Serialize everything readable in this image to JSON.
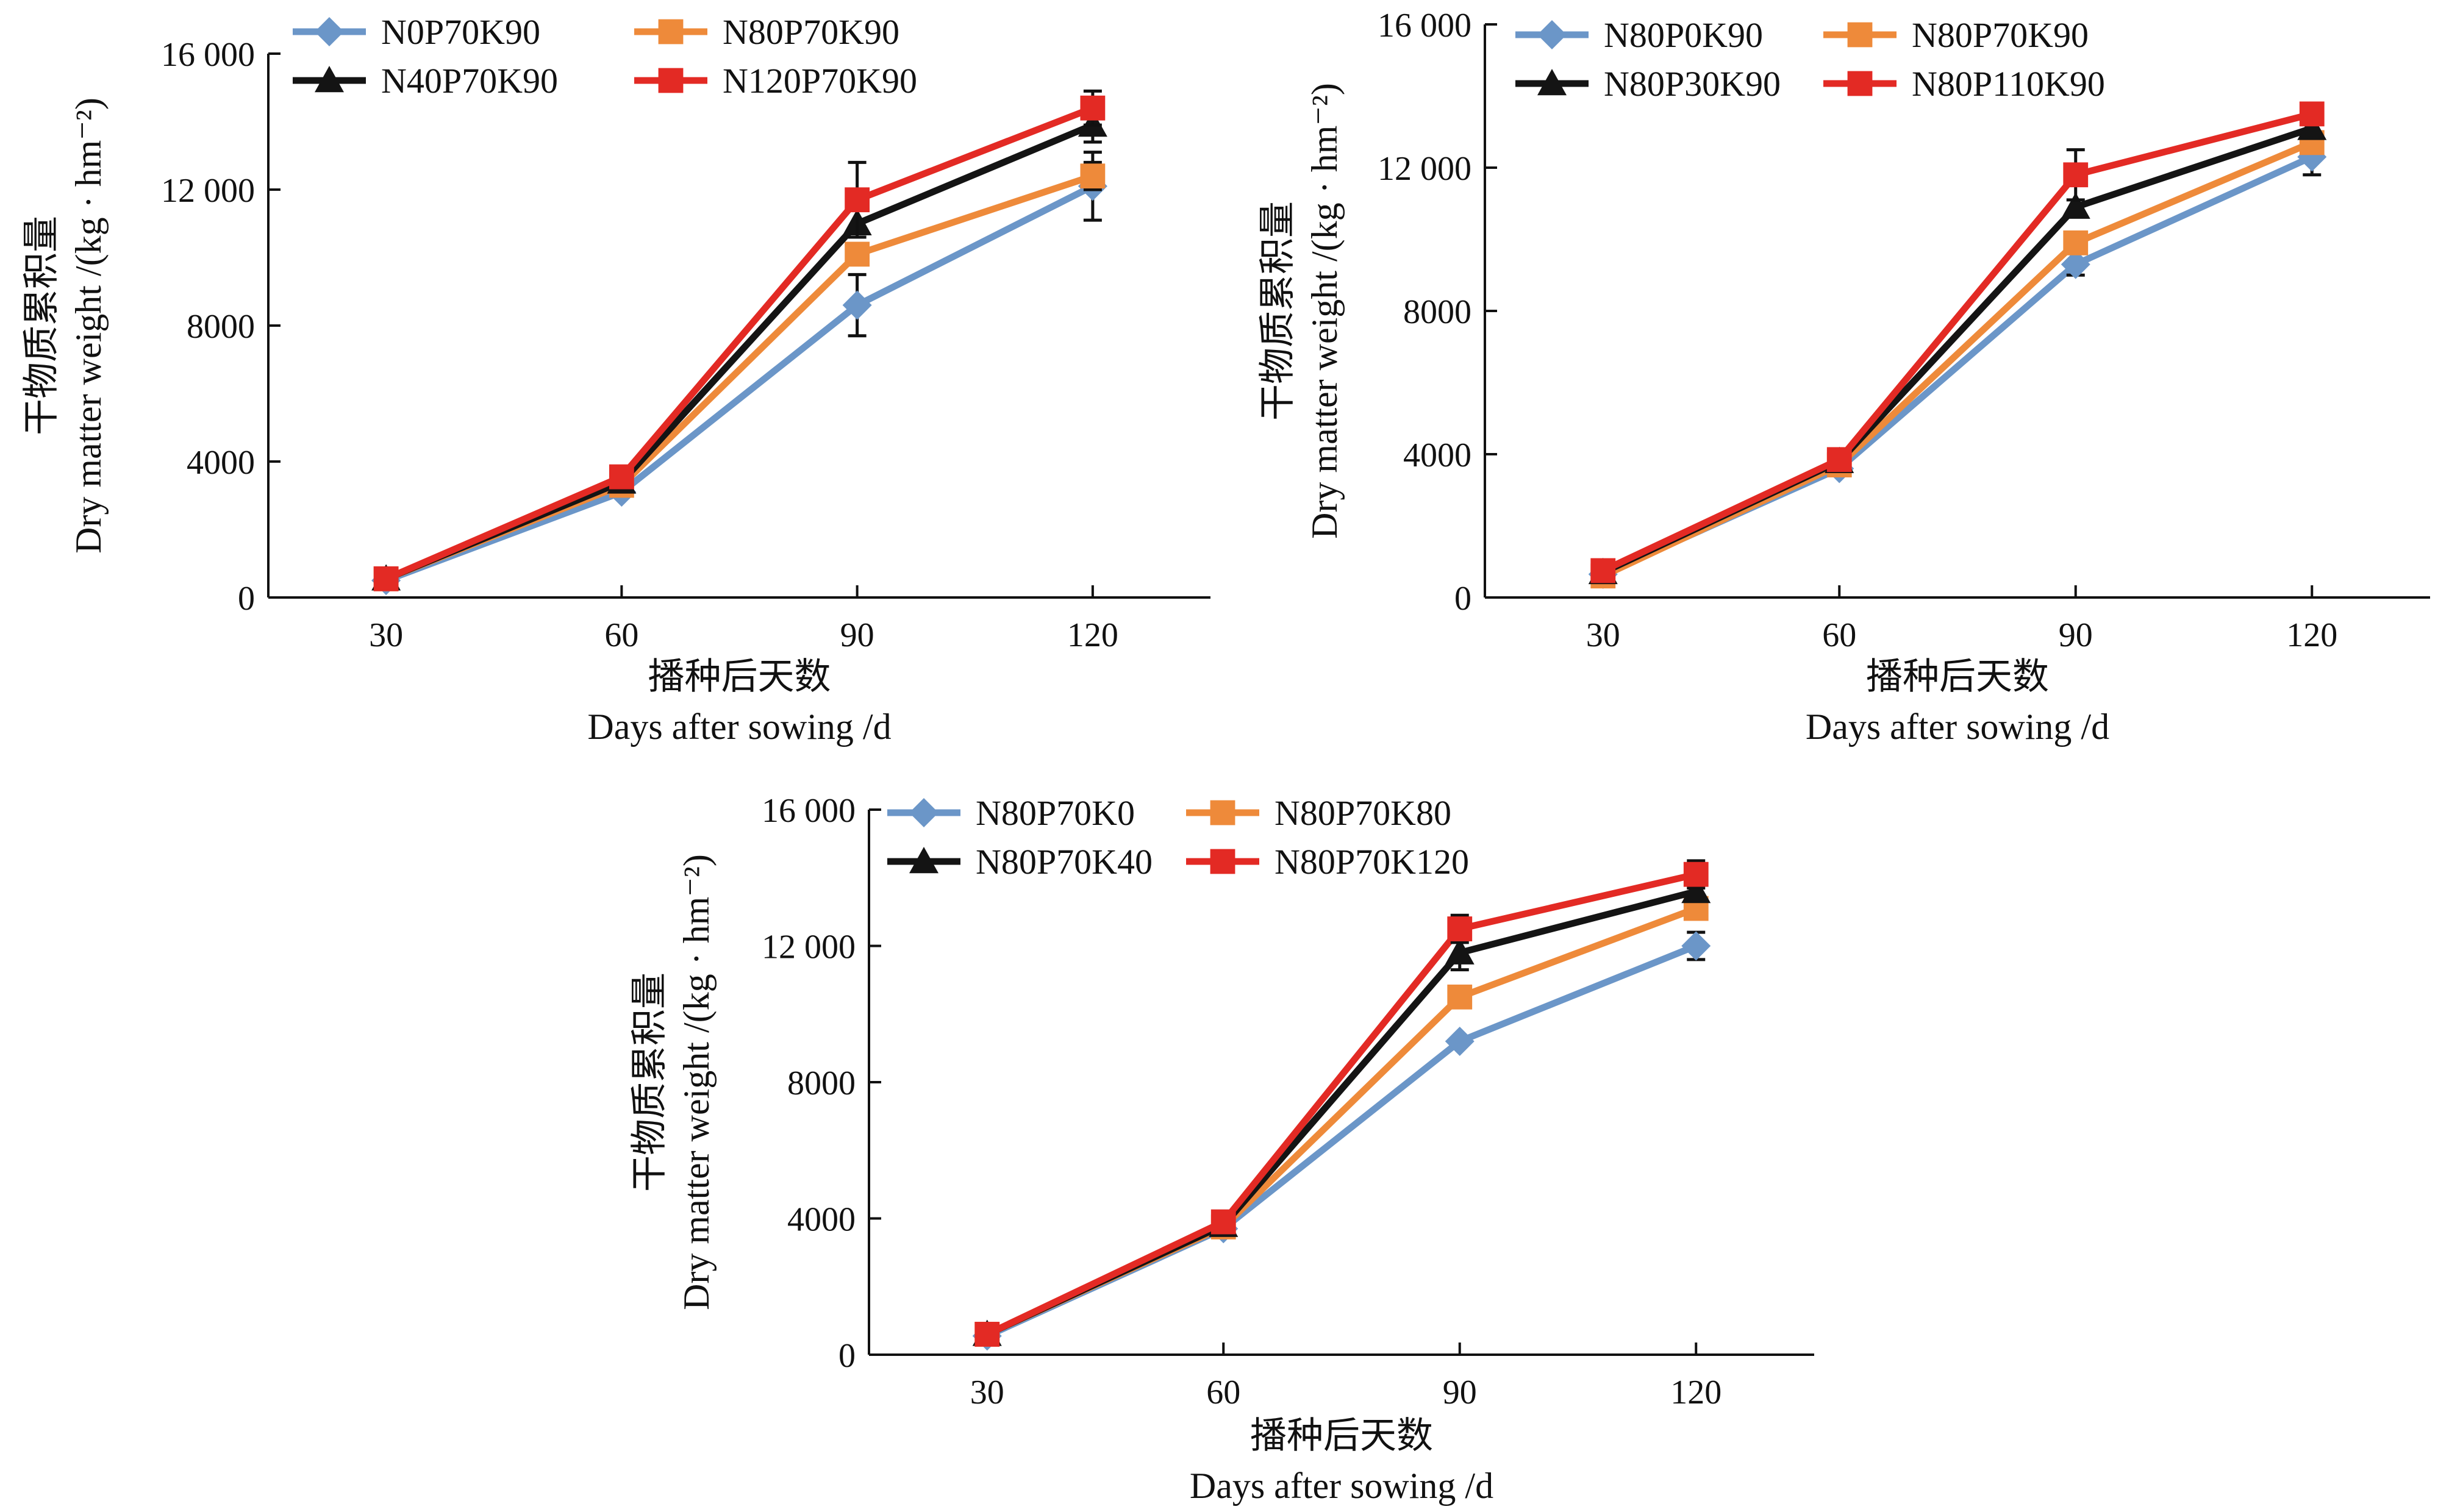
{
  "colors": {
    "blue": "#6b96c8",
    "orange": "#ee8a3a",
    "black": "#141414",
    "red": "#e32a24"
  },
  "chart_data": [
    {
      "type": "line",
      "title": "",
      "xlabel": [
        "播种后天数",
        "Days after sowing /d"
      ],
      "ylabel": [
        "干物质累积量",
        "Dry matter weight /(kg · hm⁻²)"
      ],
      "x": [
        30,
        60,
        90,
        120
      ],
      "xlim": [
        15,
        135
      ],
      "ylim": [
        0,
        16000
      ],
      "yticks": [
        0,
        4000,
        8000,
        12000,
        16000
      ],
      "ytick_labels": [
        "0",
        "4000",
        "8000",
        "12 000",
        "16 000"
      ],
      "legend_position": "top-left",
      "grid": false,
      "series": [
        {
          "name": "N0P70K90",
          "color": "blue",
          "marker": "diamond",
          "values": [
            500,
            3100,
            8600,
            12100
          ],
          "errors": [
            0,
            0,
            900,
            1000
          ]
        },
        {
          "name": "N80P70K90",
          "color": "orange",
          "marker": "square",
          "values": [
            550,
            3300,
            10100,
            12400
          ],
          "errors": [
            0,
            0,
            0,
            400
          ]
        },
        {
          "name": "N40P70K90",
          "color": "black",
          "marker": "triangle",
          "values": [
            550,
            3400,
            11000,
            13900
          ],
          "errors": [
            0,
            0,
            0,
            500
          ]
        },
        {
          "name": "N120P70K90",
          "color": "red",
          "marker": "square",
          "values": [
            550,
            3550,
            11700,
            14400
          ],
          "errors": [
            0,
            0,
            1100,
            500
          ]
        }
      ]
    },
    {
      "type": "line",
      "title": "",
      "xlabel": [
        "播种后天数",
        "Days after sowing /d"
      ],
      "ylabel": [
        "干物质累积量",
        "Dry matter weight /(kg · hm⁻²)"
      ],
      "x": [
        30,
        60,
        90,
        120
      ],
      "xlim": [
        15,
        135
      ],
      "ylim": [
        0,
        16000
      ],
      "yticks": [
        0,
        4000,
        8000,
        12000,
        16000
      ],
      "ytick_labels": [
        "0",
        "4000",
        "8000",
        "12 000",
        "16 000"
      ],
      "legend_position": "top-left",
      "grid": false,
      "series": [
        {
          "name": "N80P0K90",
          "color": "blue",
          "marker": "diamond",
          "values": [
            650,
            3600,
            9300,
            12300
          ],
          "errors": [
            0,
            0,
            300,
            500
          ]
        },
        {
          "name": "N80P70K90",
          "color": "orange",
          "marker": "square",
          "values": [
            600,
            3700,
            9900,
            12700
          ],
          "errors": [
            0,
            0,
            0,
            0
          ]
        },
        {
          "name": "N80P30K90",
          "color": "black",
          "marker": "triangle",
          "values": [
            700,
            3800,
            10900,
            13100
          ],
          "errors": [
            0,
            0,
            0,
            0
          ]
        },
        {
          "name": "N80P110K90",
          "color": "red",
          "marker": "square",
          "values": [
            750,
            3850,
            11800,
            13500
          ],
          "errors": [
            0,
            0,
            700,
            0
          ]
        }
      ]
    },
    {
      "type": "line",
      "title": "",
      "xlabel": [
        "播种后天数",
        "Days after sowing /d"
      ],
      "ylabel": [
        "干物质累积量",
        "Dry matter weight /(kg · hm⁻²)"
      ],
      "x": [
        30,
        60,
        90,
        120
      ],
      "xlim": [
        15,
        135
      ],
      "ylim": [
        0,
        16000
      ],
      "yticks": [
        0,
        4000,
        8000,
        12000,
        16000
      ],
      "ytick_labels": [
        "0",
        "4000",
        "8000",
        "12 000",
        "16 000"
      ],
      "legend_position": "top-left",
      "grid": false,
      "series": [
        {
          "name": "N80P70K0",
          "color": "blue",
          "marker": "diamond",
          "values": [
            550,
            3700,
            9200,
            12000
          ],
          "errors": [
            0,
            0,
            0,
            400
          ]
        },
        {
          "name": "N80P70K80",
          "color": "orange",
          "marker": "square",
          "values": [
            600,
            3750,
            10500,
            13100
          ],
          "errors": [
            0,
            0,
            0,
            0
          ]
        },
        {
          "name": "N80P70K40",
          "color": "black",
          "marker": "triangle",
          "values": [
            600,
            3800,
            11800,
            13600
          ],
          "errors": [
            0,
            0,
            500,
            0
          ]
        },
        {
          "name": "N80P70K120",
          "color": "red",
          "marker": "square",
          "values": [
            600,
            3900,
            12500,
            14100
          ],
          "errors": [
            0,
            0,
            400,
            400
          ]
        }
      ]
    }
  ]
}
